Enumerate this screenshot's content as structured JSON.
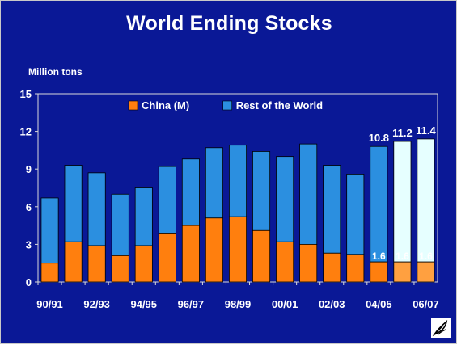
{
  "slide": {
    "title": "World Ending Stocks",
    "unit_label": "Million tons",
    "logo_icon": "feather-logo-icon"
  },
  "chart_data": {
    "type": "bar",
    "stacked": true,
    "categories": [
      "90/91",
      "91/92",
      "92/93",
      "93/94",
      "94/95",
      "95/96",
      "96/97",
      "97/98",
      "98/99",
      "99/00",
      "00/01",
      "01/02",
      "02/03",
      "03/04",
      "04/05",
      "05/06",
      "06/07"
    ],
    "x_tick_labels": [
      "90/91",
      "92/93",
      "94/95",
      "96/97",
      "98/99",
      "00/01",
      "02/03",
      "04/05",
      "06/07"
    ],
    "series": [
      {
        "name": "China (M)",
        "color": "#ff7f0e",
        "values": [
          1.5,
          3.2,
          2.9,
          2.1,
          2.9,
          3.9,
          4.5,
          5.1,
          5.2,
          4.1,
          3.2,
          3.0,
          2.3,
          2.2,
          1.6,
          1.6,
          1.6
        ]
      },
      {
        "name": "Rest of the World",
        "color": "#2b8fe0",
        "values": [
          5.2,
          6.1,
          5.8,
          4.9,
          4.6,
          5.3,
          5.3,
          5.6,
          5.7,
          6.3,
          6.8,
          8.0,
          7.0,
          6.4,
          9.2,
          9.6,
          9.8
        ]
      }
    ],
    "projected_categories": [
      "05/06",
      "06/07"
    ],
    "projected_colors": {
      "China (M)": "#ffa040",
      "Rest of the World": "#e6ffff"
    },
    "data_labels": [
      {
        "category": "04/05",
        "series": "China (M)",
        "text": "1.6"
      },
      {
        "category": "05/06",
        "series": "China (M)",
        "text": "1.6"
      },
      {
        "category": "06/07",
        "series": "China (M)",
        "text": "1.6"
      },
      {
        "category": "04/05",
        "series": "total",
        "text": "10.8"
      },
      {
        "category": "05/06",
        "series": "total",
        "text": "11.2"
      },
      {
        "category": "06/07",
        "series": "total",
        "text": "11.4"
      }
    ],
    "ylim": [
      0,
      15
    ],
    "yticks": [
      0,
      3,
      6,
      9,
      12,
      15
    ],
    "legend_position": "top-center",
    "grid": false
  }
}
